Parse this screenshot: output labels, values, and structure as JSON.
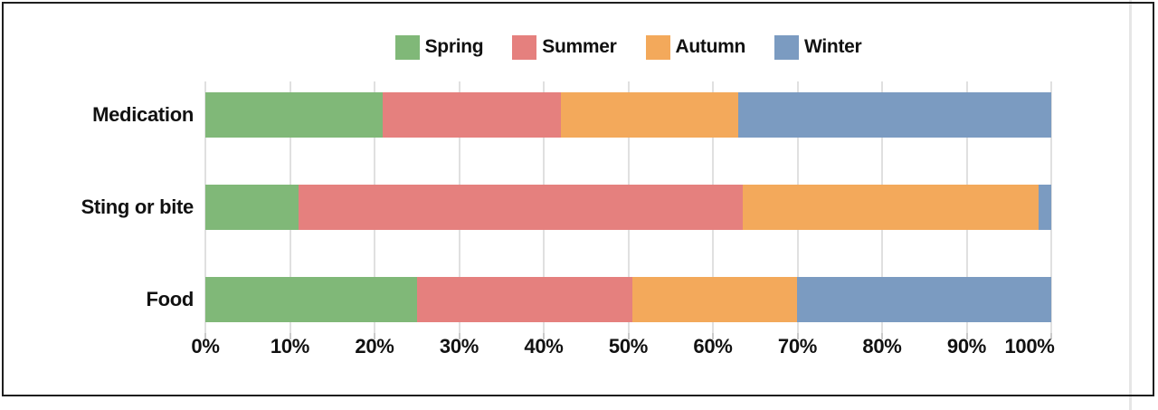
{
  "chart_data": {
    "type": "bar",
    "orientation": "horizontal",
    "stacked": true,
    "unit": "%",
    "title": "",
    "categories": [
      "Medication",
      "Sting or bite",
      "Food"
    ],
    "series": [
      {
        "name": "Spring",
        "color": "#80B878",
        "values": [
          21,
          11,
          25
        ]
      },
      {
        "name": "Summer",
        "color": "#E5807E",
        "values": [
          21,
          52.5,
          25.5
        ]
      },
      {
        "name": "Autumn",
        "color": "#F3A95B",
        "values": [
          21,
          35,
          19.5
        ]
      },
      {
        "name": "Winter",
        "color": "#7B9BC1",
        "values": [
          37,
          1.5,
          30
        ]
      }
    ],
    "x_axis": {
      "min": 0,
      "max": 100,
      "tick_labels": [
        "0%",
        "10%",
        "20%",
        "30%",
        "40%",
        "50%",
        "60%",
        "70%",
        "80%",
        "90%",
        "100%"
      ]
    },
    "legend_position": "top-center",
    "grid": true
  },
  "colors": {
    "frame_border": "#1e1e1e",
    "grid_line": "#e0e0e0",
    "axis_tick": "#c9c9c9",
    "text": "#111111",
    "background": "#ffffff",
    "stray_line": "#e6e6e6"
  }
}
